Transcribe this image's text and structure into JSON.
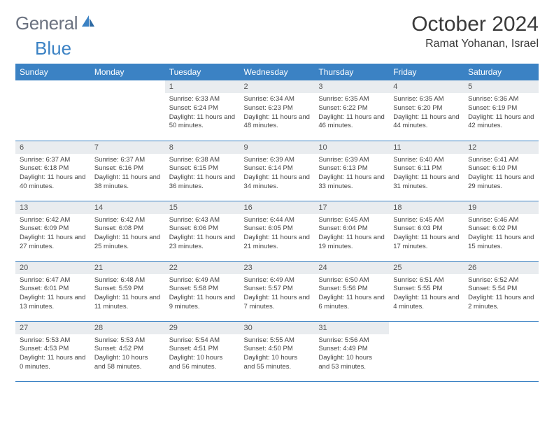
{
  "brand": {
    "part1": "General",
    "part2": "Blue"
  },
  "title": "October 2024",
  "location": "Ramat Yohanan, Israel",
  "colors": {
    "header_bg": "#3b82c4",
    "header_text": "#ffffff",
    "daynum_bg": "#e9ecef",
    "border": "#3b82c4",
    "text": "#444444",
    "logo_gray": "#6b7280",
    "logo_blue": "#3b82c4"
  },
  "weekdays": [
    "Sunday",
    "Monday",
    "Tuesday",
    "Wednesday",
    "Thursday",
    "Friday",
    "Saturday"
  ],
  "layout": {
    "first_weekday_index": 2,
    "days_in_month": 31
  },
  "days": [
    {
      "n": 1,
      "sunrise": "6:33 AM",
      "sunset": "6:24 PM",
      "daylight": "11 hours and 50 minutes."
    },
    {
      "n": 2,
      "sunrise": "6:34 AM",
      "sunset": "6:23 PM",
      "daylight": "11 hours and 48 minutes."
    },
    {
      "n": 3,
      "sunrise": "6:35 AM",
      "sunset": "6:22 PM",
      "daylight": "11 hours and 46 minutes."
    },
    {
      "n": 4,
      "sunrise": "6:35 AM",
      "sunset": "6:20 PM",
      "daylight": "11 hours and 44 minutes."
    },
    {
      "n": 5,
      "sunrise": "6:36 AM",
      "sunset": "6:19 PM",
      "daylight": "11 hours and 42 minutes."
    },
    {
      "n": 6,
      "sunrise": "6:37 AM",
      "sunset": "6:18 PM",
      "daylight": "11 hours and 40 minutes."
    },
    {
      "n": 7,
      "sunrise": "6:37 AM",
      "sunset": "6:16 PM",
      "daylight": "11 hours and 38 minutes."
    },
    {
      "n": 8,
      "sunrise": "6:38 AM",
      "sunset": "6:15 PM",
      "daylight": "11 hours and 36 minutes."
    },
    {
      "n": 9,
      "sunrise": "6:39 AM",
      "sunset": "6:14 PM",
      "daylight": "11 hours and 34 minutes."
    },
    {
      "n": 10,
      "sunrise": "6:39 AM",
      "sunset": "6:13 PM",
      "daylight": "11 hours and 33 minutes."
    },
    {
      "n": 11,
      "sunrise": "6:40 AM",
      "sunset": "6:11 PM",
      "daylight": "11 hours and 31 minutes."
    },
    {
      "n": 12,
      "sunrise": "6:41 AM",
      "sunset": "6:10 PM",
      "daylight": "11 hours and 29 minutes."
    },
    {
      "n": 13,
      "sunrise": "6:42 AM",
      "sunset": "6:09 PM",
      "daylight": "11 hours and 27 minutes."
    },
    {
      "n": 14,
      "sunrise": "6:42 AM",
      "sunset": "6:08 PM",
      "daylight": "11 hours and 25 minutes."
    },
    {
      "n": 15,
      "sunrise": "6:43 AM",
      "sunset": "6:06 PM",
      "daylight": "11 hours and 23 minutes."
    },
    {
      "n": 16,
      "sunrise": "6:44 AM",
      "sunset": "6:05 PM",
      "daylight": "11 hours and 21 minutes."
    },
    {
      "n": 17,
      "sunrise": "6:45 AM",
      "sunset": "6:04 PM",
      "daylight": "11 hours and 19 minutes."
    },
    {
      "n": 18,
      "sunrise": "6:45 AM",
      "sunset": "6:03 PM",
      "daylight": "11 hours and 17 minutes."
    },
    {
      "n": 19,
      "sunrise": "6:46 AM",
      "sunset": "6:02 PM",
      "daylight": "11 hours and 15 minutes."
    },
    {
      "n": 20,
      "sunrise": "6:47 AM",
      "sunset": "6:01 PM",
      "daylight": "11 hours and 13 minutes."
    },
    {
      "n": 21,
      "sunrise": "6:48 AM",
      "sunset": "5:59 PM",
      "daylight": "11 hours and 11 minutes."
    },
    {
      "n": 22,
      "sunrise": "6:49 AM",
      "sunset": "5:58 PM",
      "daylight": "11 hours and 9 minutes."
    },
    {
      "n": 23,
      "sunrise": "6:49 AM",
      "sunset": "5:57 PM",
      "daylight": "11 hours and 7 minutes."
    },
    {
      "n": 24,
      "sunrise": "6:50 AM",
      "sunset": "5:56 PM",
      "daylight": "11 hours and 6 minutes."
    },
    {
      "n": 25,
      "sunrise": "6:51 AM",
      "sunset": "5:55 PM",
      "daylight": "11 hours and 4 minutes."
    },
    {
      "n": 26,
      "sunrise": "6:52 AM",
      "sunset": "5:54 PM",
      "daylight": "11 hours and 2 minutes."
    },
    {
      "n": 27,
      "sunrise": "5:53 AM",
      "sunset": "4:53 PM",
      "daylight": "11 hours and 0 minutes."
    },
    {
      "n": 28,
      "sunrise": "5:53 AM",
      "sunset": "4:52 PM",
      "daylight": "10 hours and 58 minutes."
    },
    {
      "n": 29,
      "sunrise": "5:54 AM",
      "sunset": "4:51 PM",
      "daylight": "10 hours and 56 minutes."
    },
    {
      "n": 30,
      "sunrise": "5:55 AM",
      "sunset": "4:50 PM",
      "daylight": "10 hours and 55 minutes."
    },
    {
      "n": 31,
      "sunrise": "5:56 AM",
      "sunset": "4:49 PM",
      "daylight": "10 hours and 53 minutes."
    }
  ]
}
